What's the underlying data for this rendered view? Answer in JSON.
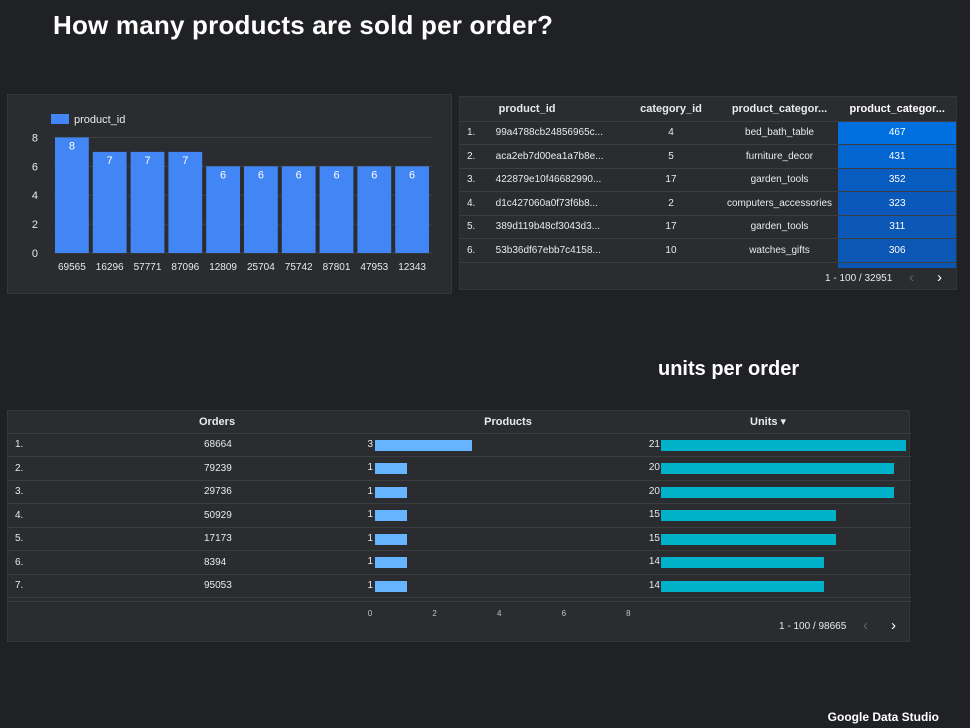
{
  "page": {
    "title": "How many products are sold per order?",
    "section_title": "units per order",
    "brand": "Google Data Studio"
  },
  "colors": {
    "background": "#202124",
    "panel": "#2a2c30",
    "bar": "#4285f4",
    "products_bar": "#66b3ff",
    "units_bar": "#00b2c9",
    "heat_max": "#0070e0",
    "heat_min": "#0c57b3"
  },
  "chart_data": {
    "type": "bar",
    "legend": "product_id",
    "categories": [
      "69565",
      "16296",
      "57771",
      "87096",
      "12809",
      "25704",
      "75742",
      "87801",
      "47953",
      "12343"
    ],
    "values": [
      8,
      7,
      7,
      7,
      6,
      6,
      6,
      6,
      6,
      6
    ],
    "yticks": [
      0,
      2,
      4,
      6,
      8
    ],
    "ylim": [
      0,
      9
    ],
    "grid": true,
    "legend_position": "top-left"
  },
  "product_table": {
    "headers": [
      "product_id",
      "category_id",
      "product_categor...",
      "product_categor..."
    ],
    "rows": [
      {
        "idx": "1.",
        "product_id": "99a4788cb24856965c...",
        "category_id": "4",
        "category_name": "bed_bath_table",
        "count": "467",
        "color": "#0070e0"
      },
      {
        "idx": "2.",
        "product_id": "aca2eb7d00ea1a7b8e...",
        "category_id": "5",
        "category_name": "furniture_decor",
        "count": "431",
        "color": "#0365cf"
      },
      {
        "idx": "3.",
        "product_id": "422879e10f46682990...",
        "category_id": "17",
        "category_name": "garden_tools",
        "count": "352",
        "color": "#085cbf"
      },
      {
        "idx": "4.",
        "product_id": "d1c427060a0f73f6b8...",
        "category_id": "2",
        "category_name": "computers_accessories",
        "count": "323",
        "color": "#0a59ba"
      },
      {
        "idx": "5.",
        "product_id": "389d119b48cf3043d3...",
        "category_id": "17",
        "category_name": "garden_tools",
        "count": "311",
        "color": "#0b58b7"
      },
      {
        "idx": "6.",
        "product_id": "53b36df67ebb7c4158...",
        "category_id": "10",
        "category_name": "watches_gifts",
        "count": "306",
        "color": "#0c57b3"
      }
    ],
    "pagination": "1 - 100 / 32951"
  },
  "orders_table": {
    "headers": {
      "orders": "Orders",
      "products": "Products",
      "units": "Units ▾"
    },
    "rows": [
      {
        "idx": "1.",
        "order": "68664",
        "products": 3,
        "products_label": "3",
        "units": 21,
        "units_label": "21"
      },
      {
        "idx": "2.",
        "order": "79239",
        "products": 1,
        "products_label": "1",
        "units": 20,
        "units_label": "20"
      },
      {
        "idx": "3.",
        "order": "29736",
        "products": 1,
        "products_label": "1",
        "units": 20,
        "units_label": "20"
      },
      {
        "idx": "4.",
        "order": "50929",
        "products": 1,
        "products_label": "1",
        "units": 15,
        "units_label": "15"
      },
      {
        "idx": "5.",
        "order": "17173",
        "products": 1,
        "products_label": "1",
        "units": 15,
        "units_label": "15"
      },
      {
        "idx": "6.",
        "order": "8394",
        "products": 1,
        "products_label": "1",
        "units": 14,
        "units_label": "14"
      },
      {
        "idx": "7.",
        "order": "95053",
        "products": 1,
        "products_label": "1",
        "units": 14,
        "units_label": "14"
      }
    ],
    "products_axis": [
      "0",
      "2",
      "4",
      "6",
      "8"
    ],
    "products_max": 8,
    "units_max": 21,
    "pagination": "1 - 100 / 98665"
  }
}
